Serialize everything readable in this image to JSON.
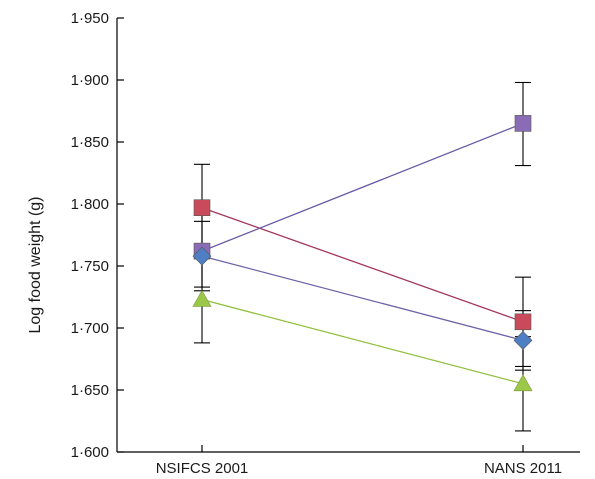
{
  "chart_data": {
    "type": "line",
    "title": "",
    "xlabel": "",
    "ylabel": "Log food weight (g)",
    "categories": [
      "NSIFCS 2001",
      "NANS 2011"
    ],
    "ylim": [
      1.6,
      1.95
    ],
    "yticks": [
      "1·600",
      "1·650",
      "1·700",
      "1·750",
      "1·800",
      "1·850",
      "1·900",
      "1·950"
    ],
    "grid": false,
    "legend": "none",
    "series": [
      {
        "marker": "square",
        "color": "#c94a5a",
        "line_color": "#a3365a",
        "values": [
          1.797,
          1.705
        ],
        "error_low": [
          1.762,
          1.669
        ],
        "error_high": [
          1.832,
          1.741
        ]
      },
      {
        "marker": "square",
        "color": "#8a6bb5",
        "line_color": "#6b5aa8",
        "values": [
          1.762,
          1.865
        ],
        "error_low": [
          1.733,
          1.831
        ],
        "error_high": [
          1.792,
          1.898
        ]
      },
      {
        "marker": "diamond",
        "color": "#4e7fc4",
        "line_color": "#6b64a8",
        "values": [
          1.758,
          1.69
        ],
        "error_low": [
          1.73,
          1.666
        ],
        "error_high": [
          1.786,
          1.714
        ]
      },
      {
        "marker": "triangle",
        "color": "#9cc84a",
        "line_color": "#8fbf3c",
        "values": [
          1.723,
          1.655
        ],
        "error_low": [
          1.688,
          1.617
        ],
        "error_high": [
          1.758,
          1.693
        ]
      }
    ]
  }
}
